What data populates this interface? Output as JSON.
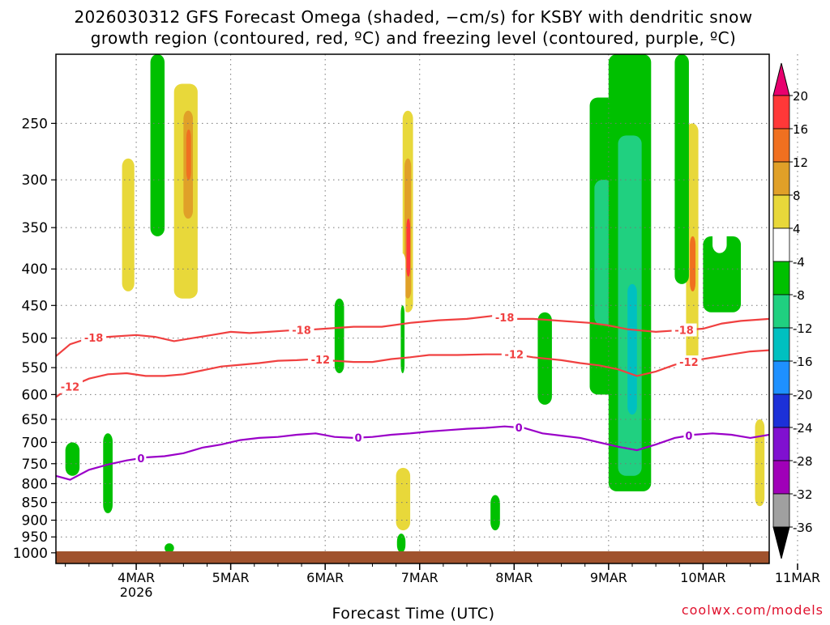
{
  "chart_data": {
    "type": "heatmap",
    "title_line1": "2026030312 GFS Forecast Omega (shaded, −cm/s) for KSBY with dendritic snow",
    "title_line2": "growth region (contoured, red, ºC) and freezing level (contoured, purple, ºC)",
    "xlabel": "Forecast Time (UTC)",
    "credit": "coolwx.com/models",
    "x_range": [
      0.15,
      7.7
    ],
    "x_ticks": [
      {
        "day": 1,
        "label": "4MAR",
        "sublabel": "2026"
      },
      {
        "day": 2,
        "label": "5MAR"
      },
      {
        "day": 3,
        "label": "6MAR"
      },
      {
        "day": 4,
        "label": "7MAR"
      },
      {
        "day": 5,
        "label": "8MAR"
      },
      {
        "day": 6,
        "label": "9MAR"
      },
      {
        "day": 7,
        "label": "10MAR"
      },
      {
        "day": 8,
        "label": "11MAR"
      }
    ],
    "y_range_hpa": [
      1035,
      200
    ],
    "y_ticks": [
      "250",
      "300",
      "350",
      "400",
      "450",
      "500",
      "550",
      "600",
      "650",
      "700",
      "750",
      "800",
      "850",
      "900",
      "950",
      "1000"
    ],
    "colorbar": {
      "labels": [
        "20",
        "16",
        "12",
        "8",
        "4",
        "-4",
        "-8",
        "-12",
        "-16",
        "-20",
        "-24",
        "-28",
        "-32",
        "-36"
      ],
      "colors": [
        "#e8006e",
        "#ff3838",
        "#f07020",
        "#e0a028",
        "#e8d83a",
        "#ffffff",
        "#00c000",
        "#20d080",
        "#00c0c0",
        "#1e90ff",
        "#1c30d8",
        "#8010d0",
        "#a000b8",
        "#a0a0a0",
        "#000000"
      ]
    },
    "contours": [
      {
        "name": "dgz-minus-18",
        "color": "#f04040",
        "label": "-18",
        "points": [
          [
            0.15,
            530
          ],
          [
            0.3,
            510
          ],
          [
            0.5,
            500
          ],
          [
            0.7,
            498
          ],
          [
            1.0,
            495
          ],
          [
            1.2,
            498
          ],
          [
            1.4,
            505
          ],
          [
            1.6,
            500
          ],
          [
            1.8,
            495
          ],
          [
            2.0,
            490
          ],
          [
            2.2,
            492
          ],
          [
            2.4,
            490
          ],
          [
            2.6,
            488
          ],
          [
            2.8,
            487
          ],
          [
            3.0,
            485
          ],
          [
            3.3,
            482
          ],
          [
            3.6,
            482
          ],
          [
            3.9,
            476
          ],
          [
            4.2,
            472
          ],
          [
            4.5,
            470
          ],
          [
            4.8,
            465
          ],
          [
            5.0,
            470
          ],
          [
            5.2,
            470
          ],
          [
            5.5,
            473
          ],
          [
            5.8,
            476
          ],
          [
            6.0,
            480
          ],
          [
            6.2,
            486
          ],
          [
            6.5,
            490
          ],
          [
            6.7,
            488
          ],
          [
            7.0,
            485
          ],
          [
            7.2,
            477
          ],
          [
            7.4,
            473
          ],
          [
            7.7,
            470
          ]
        ],
        "label_x": [
          0.55,
          2.75,
          4.9,
          6.8
        ]
      },
      {
        "name": "dgz-minus-12",
        "color": "#f04040",
        "label": "-12",
        "points": [
          [
            0.15,
            605
          ],
          [
            0.3,
            585
          ],
          [
            0.5,
            570
          ],
          [
            0.7,
            562
          ],
          [
            0.9,
            560
          ],
          [
            1.1,
            565
          ],
          [
            1.3,
            565
          ],
          [
            1.5,
            562
          ],
          [
            1.7,
            555
          ],
          [
            1.9,
            548
          ],
          [
            2.1,
            545
          ],
          [
            2.3,
            542
          ],
          [
            2.5,
            538
          ],
          [
            2.7,
            537
          ],
          [
            2.9,
            535
          ],
          [
            3.1,
            538
          ],
          [
            3.3,
            540
          ],
          [
            3.5,
            540
          ],
          [
            3.7,
            535
          ],
          [
            3.9,
            532
          ],
          [
            4.1,
            528
          ],
          [
            4.4,
            528
          ],
          [
            4.7,
            527
          ],
          [
            5.0,
            527
          ],
          [
            5.2,
            532
          ],
          [
            5.5,
            537
          ],
          [
            5.7,
            542
          ],
          [
            5.9,
            546
          ],
          [
            6.1,
            553
          ],
          [
            6.3,
            565
          ],
          [
            6.5,
            557
          ],
          [
            6.7,
            545
          ],
          [
            7.0,
            535
          ],
          [
            7.3,
            527
          ],
          [
            7.5,
            522
          ],
          [
            7.7,
            520
          ]
        ],
        "label_x": [
          0.3,
          2.95,
          5.0,
          6.85
        ]
      },
      {
        "name": "freezing-level-0",
        "color": "#9a00c8",
        "label": "0",
        "points": [
          [
            0.15,
            780
          ],
          [
            0.3,
            790
          ],
          [
            0.5,
            765
          ],
          [
            0.7,
            752
          ],
          [
            0.9,
            742
          ],
          [
            1.1,
            735
          ],
          [
            1.3,
            732
          ],
          [
            1.5,
            725
          ],
          [
            1.7,
            712
          ],
          [
            1.9,
            705
          ],
          [
            2.1,
            695
          ],
          [
            2.3,
            690
          ],
          [
            2.5,
            688
          ],
          [
            2.7,
            683
          ],
          [
            2.9,
            680
          ],
          [
            3.1,
            688
          ],
          [
            3.3,
            690
          ],
          [
            3.5,
            688
          ],
          [
            3.7,
            683
          ],
          [
            3.9,
            680
          ],
          [
            4.1,
            676
          ],
          [
            4.3,
            673
          ],
          [
            4.5,
            670
          ],
          [
            4.7,
            668
          ],
          [
            4.9,
            665
          ],
          [
            5.1,
            668
          ],
          [
            5.3,
            680
          ],
          [
            5.5,
            685
          ],
          [
            5.7,
            690
          ],
          [
            5.9,
            700
          ],
          [
            6.1,
            710
          ],
          [
            6.3,
            718
          ],
          [
            6.5,
            705
          ],
          [
            6.7,
            690
          ],
          [
            6.9,
            683
          ],
          [
            7.1,
            680
          ],
          [
            7.3,
            683
          ],
          [
            7.5,
            690
          ],
          [
            7.7,
            683
          ]
        ],
        "label_x": [
          1.05,
          3.35,
          5.05,
          6.85
        ]
      }
    ],
    "omega_shading": [
      {
        "x0": 0.6,
        "x1": 0.75,
        "p0": 200,
        "p1": 420,
        "level": "4"
      },
      {
        "x0": 0.8,
        "x1": 1.05,
        "p0": 230,
        "p1": 460,
        "level": "4"
      },
      {
        "x0": 0.85,
        "x1": 0.98,
        "p0": 280,
        "p1": 430,
        "level": "8"
      },
      {
        "x0": 0.15,
        "x1": 0.3,
        "p0": 250,
        "p1": 450,
        "level": "4"
      },
      {
        "x0": 1.1,
        "x1": 1.35,
        "p0": 200,
        "p1": 420,
        "level": "-4"
      },
      {
        "x0": 1.15,
        "x1": 1.3,
        "p0": 200,
        "p1": 360,
        "level": "-8"
      },
      {
        "x0": 1.35,
        "x1": 1.7,
        "p0": 200,
        "p1": 470,
        "level": "4"
      },
      {
        "x0": 1.4,
        "x1": 1.65,
        "p0": 220,
        "p1": 440,
        "level": "8"
      },
      {
        "x0": 1.5,
        "x1": 1.6,
        "p0": 240,
        "p1": 340,
        "level": "12"
      },
      {
        "x0": 1.53,
        "x1": 1.58,
        "p0": 255,
        "p1": 300,
        "level": "16"
      },
      {
        "x0": 1.75,
        "x1": 1.85,
        "p0": 270,
        "p1": 400,
        "level": "4"
      },
      {
        "x0": 2.65,
        "x1": 2.75,
        "p0": 230,
        "p1": 330,
        "level": "4"
      },
      {
        "x0": 3.0,
        "x1": 3.15,
        "p0": 230,
        "p1": 500,
        "level": "4"
      },
      {
        "x0": 3.45,
        "x1": 3.55,
        "p0": 200,
        "p1": 470,
        "level": "4"
      },
      {
        "x0": 3.8,
        "x1": 3.95,
        "p0": 200,
        "p1": 470,
        "level": "4"
      },
      {
        "x0": 3.82,
        "x1": 3.93,
        "p0": 240,
        "p1": 460,
        "level": "8"
      },
      {
        "x0": 3.84,
        "x1": 3.91,
        "p0": 280,
        "p1": 440,
        "level": "12"
      },
      {
        "x0": 3.86,
        "x1": 3.9,
        "p0": 340,
        "p1": 410,
        "level": "20"
      },
      {
        "x0": 3.77,
        "x1": 3.85,
        "p0": 380,
        "p1": 560,
        "level": "-4"
      },
      {
        "x0": 3.8,
        "x1": 3.84,
        "p0": 450,
        "p1": 560,
        "level": "-8"
      },
      {
        "x0": 3.75,
        "x1": 3.9,
        "p0": 760,
        "p1": 930,
        "level": "8"
      },
      {
        "x0": 3.76,
        "x1": 3.85,
        "p0": 940,
        "p1": 1000,
        "level": "-8"
      },
      {
        "x0": 3.05,
        "x1": 3.25,
        "p0": 420,
        "p1": 600,
        "level": "-4"
      },
      {
        "x0": 3.1,
        "x1": 3.2,
        "p0": 440,
        "p1": 560,
        "level": "-8"
      },
      {
        "x0": 4.15,
        "x1": 4.35,
        "p0": 760,
        "p1": 900,
        "level": "4"
      },
      {
        "x0": 4.85,
        "x1": 5.0,
        "p0": 320,
        "p1": 560,
        "level": "-4"
      },
      {
        "x0": 4.4,
        "x1": 4.5,
        "p0": 420,
        "p1": 640,
        "level": "4"
      },
      {
        "x0": 5.15,
        "x1": 5.35,
        "p0": 450,
        "p1": 700,
        "level": "4"
      },
      {
        "x0": 5.25,
        "x1": 5.4,
        "p0": 460,
        "p1": 620,
        "level": "-8"
      },
      {
        "x0": 5.45,
        "x1": 5.6,
        "p0": 200,
        "p1": 340,
        "level": "4"
      },
      {
        "x0": 5.5,
        "x1": 5.7,
        "p0": 360,
        "p1": 470,
        "level": "4"
      },
      {
        "x0": 5.8,
        "x1": 6.1,
        "p0": 230,
        "p1": 600,
        "level": "-8"
      },
      {
        "x0": 5.85,
        "x1": 6.05,
        "p0": 300,
        "p1": 480,
        "level": "-12"
      },
      {
        "x0": 6.0,
        "x1": 6.45,
        "p0": 200,
        "p1": 820,
        "level": "-8"
      },
      {
        "x0": 6.1,
        "x1": 6.35,
        "p0": 260,
        "p1": 780,
        "level": "-12"
      },
      {
        "x0": 6.2,
        "x1": 6.3,
        "p0": 420,
        "p1": 640,
        "level": "-16"
      },
      {
        "x0": 6.5,
        "x1": 6.7,
        "p0": 260,
        "p1": 680,
        "level": "4"
      },
      {
        "x0": 6.75,
        "x1": 7.0,
        "p0": 200,
        "p1": 600,
        "level": "4"
      },
      {
        "x0": 6.82,
        "x1": 6.95,
        "p0": 250,
        "p1": 540,
        "level": "8"
      },
      {
        "x0": 6.86,
        "x1": 6.92,
        "p0": 360,
        "p1": 430,
        "level": "16"
      },
      {
        "x0": 6.7,
        "x1": 6.85,
        "p0": 200,
        "p1": 420,
        "level": "-8"
      },
      {
        "x0": 7.0,
        "x1": 7.4,
        "p0": 360,
        "p1": 460,
        "level": "-8"
      },
      {
        "x0": 7.1,
        "x1": 7.25,
        "p0": 270,
        "p1": 380,
        "level": "4"
      },
      {
        "x0": 7.5,
        "x1": 7.7,
        "p0": 400,
        "p1": 560,
        "level": "4"
      },
      {
        "x0": 7.55,
        "x1": 7.65,
        "p0": 650,
        "p1": 860,
        "level": "8"
      },
      {
        "x0": 6.5,
        "x1": 6.65,
        "p0": 700,
        "p1": 960,
        "level": "4"
      },
      {
        "x0": 6.75,
        "x1": 6.9,
        "p0": 720,
        "p1": 930,
        "level": "4"
      },
      {
        "x0": 5.8,
        "x1": 5.95,
        "p0": 680,
        "p1": 900,
        "level": "4"
      },
      {
        "x0": 1.3,
        "x1": 1.5,
        "p0": 830,
        "p1": 920,
        "level": "4"
      },
      {
        "x0": 2.25,
        "x1": 2.35,
        "p0": 620,
        "p1": 780,
        "level": "4"
      },
      {
        "x0": 1.3,
        "x1": 1.4,
        "p0": 970,
        "p1": 1000,
        "level": "-8"
      },
      {
        "x0": 0.25,
        "x1": 0.4,
        "p0": 700,
        "p1": 780,
        "level": "-8"
      },
      {
        "x0": 0.65,
        "x1": 0.75,
        "p0": 680,
        "p1": 880,
        "level": "-8"
      },
      {
        "x0": 2.0,
        "x1": 2.1,
        "p0": 460,
        "p1": 560,
        "level": "4"
      },
      {
        "x0": 4.95,
        "x1": 5.1,
        "p0": 760,
        "p1": 880,
        "level": "4"
      },
      {
        "x0": 4.75,
        "x1": 4.85,
        "p0": 830,
        "p1": 930,
        "level": "-8"
      }
    ]
  }
}
